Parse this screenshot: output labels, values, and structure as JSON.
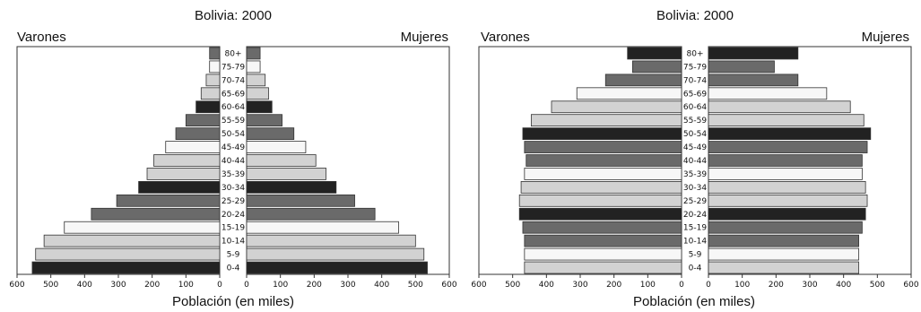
{
  "chart_data": [
    {
      "type": "bar",
      "orientation": "horizontal-pyramid",
      "title": "Bolivia: 2000",
      "left_label": "Varones",
      "right_label": "Mujeres",
      "xlabel": "Población (en miles)",
      "xlim": [
        0,
        600
      ],
      "xticks": [
        600,
        500,
        400,
        300,
        200,
        100,
        0
      ],
      "xticks_right": [
        0,
        100,
        200,
        300,
        400,
        500,
        600
      ],
      "categories": [
        "0-4",
        "5-9",
        "10-14",
        "15-19",
        "20-24",
        "25-29",
        "30-34",
        "35-39",
        "40-44",
        "45-49",
        "50-54",
        "55-59",
        "60-64",
        "65-69",
        "70-74",
        "75-79",
        "80+"
      ],
      "series": [
        {
          "name": "Varones",
          "values": [
            555,
            545,
            520,
            460,
            380,
            305,
            240,
            215,
            195,
            160,
            130,
            100,
            70,
            55,
            40,
            30,
            30
          ]
        },
        {
          "name": "Mujeres",
          "values": [
            535,
            525,
            500,
            450,
            380,
            320,
            265,
            235,
            205,
            175,
            140,
            105,
            75,
            65,
            55,
            40,
            40
          ]
        }
      ],
      "bar_colors": [
        "#222222",
        "#d2d2d2",
        "#d2d2d2",
        "#f7f7f7",
        "#6a6a6a",
        "#6a6a6a",
        "#222222",
        "#d2d2d2",
        "#d2d2d2",
        "#f7f7f7",
        "#6a6a6a",
        "#6a6a6a",
        "#222222",
        "#d2d2d2",
        "#d2d2d2",
        "#f7f7f7",
        "#6a6a6a"
      ]
    },
    {
      "type": "bar",
      "orientation": "horizontal-pyramid",
      "title": "Bolivia: 2000",
      "left_label": "Varones",
      "right_label": "Mujeres",
      "xlabel": "Población (en miles)",
      "xlim": [
        0,
        600
      ],
      "xticks": [
        600,
        500,
        400,
        300,
        200,
        100,
        0
      ],
      "xticks_right": [
        0,
        100,
        200,
        300,
        400,
        500,
        600
      ],
      "categories": [
        "0-4",
        "5-9",
        "10-14",
        "15-19",
        "20-24",
        "25-29",
        "30-34",
        "35-39",
        "40-44",
        "45-49",
        "50-54",
        "55-59",
        "60-64",
        "65-69",
        "70-74",
        "75-79",
        "80+"
      ],
      "series": [
        {
          "name": "Varones",
          "values": [
            465,
            465,
            465,
            470,
            480,
            480,
            475,
            465,
            460,
            465,
            470,
            445,
            385,
            310,
            225,
            145,
            160
          ]
        },
        {
          "name": "Mujeres",
          "values": [
            445,
            445,
            445,
            455,
            465,
            470,
            465,
            455,
            455,
            470,
            480,
            460,
            420,
            350,
            265,
            195,
            265
          ]
        }
      ],
      "bar_colors": [
        "#d2d2d2",
        "#f7f7f7",
        "#6a6a6a",
        "#6a6a6a",
        "#222222",
        "#d2d2d2",
        "#d2d2d2",
        "#f7f7f7",
        "#6a6a6a",
        "#6a6a6a",
        "#222222",
        "#d2d2d2",
        "#d2d2d2",
        "#f7f7f7",
        "#6a6a6a",
        "#6a6a6a",
        "#222222"
      ]
    }
  ]
}
